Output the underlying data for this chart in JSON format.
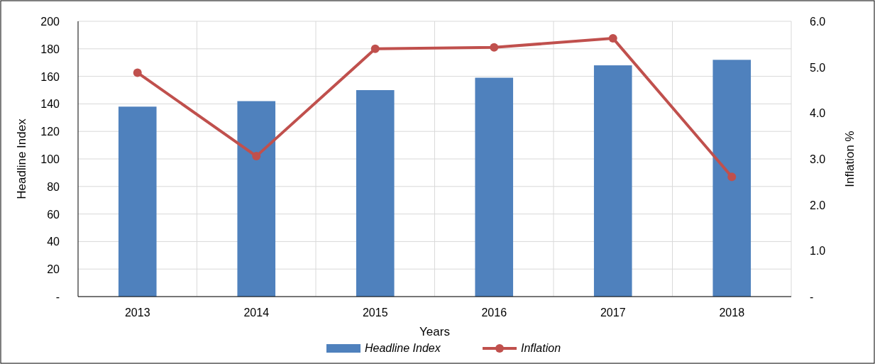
{
  "chart_data": {
    "type": "bar",
    "xlabel": "Years",
    "ylabel": "Headline Index",
    "y2label": "Inflation %",
    "categories": [
      "2013",
      "2014",
      "2015",
      "2016",
      "2017",
      "2018"
    ],
    "series": [
      {
        "name": "Headline Index",
        "color": "#4f81bd",
        "values": [
          138,
          142,
          150,
          159,
          168,
          172
        ]
      },
      {
        "name": "Inflation",
        "type": "line",
        "axis": "y2",
        "color": "#c0504d",
        "marker": "circle",
        "values": [
          4.88,
          3.06,
          5.4,
          5.43,
          5.63,
          2.61
        ]
      }
    ],
    "ylim": [
      0,
      200
    ],
    "yticks": [
      {
        "value": 0,
        "label": "-"
      },
      20,
      40,
      60,
      80,
      100,
      120,
      140,
      160,
      180,
      200
    ],
    "y2lim": [
      0,
      6
    ],
    "y2ticks": [
      {
        "value": 0,
        "label": "-"
      },
      {
        "value": 1,
        "label": "1.0"
      },
      {
        "value": 2,
        "label": "2.0"
      },
      {
        "value": 3,
        "label": "3.0"
      },
      {
        "value": 4,
        "label": "4.0"
      },
      {
        "value": 5,
        "label": "5.0"
      },
      {
        "value": 6,
        "label": "6.0"
      }
    ],
    "grid": true,
    "legend": "bottom"
  }
}
